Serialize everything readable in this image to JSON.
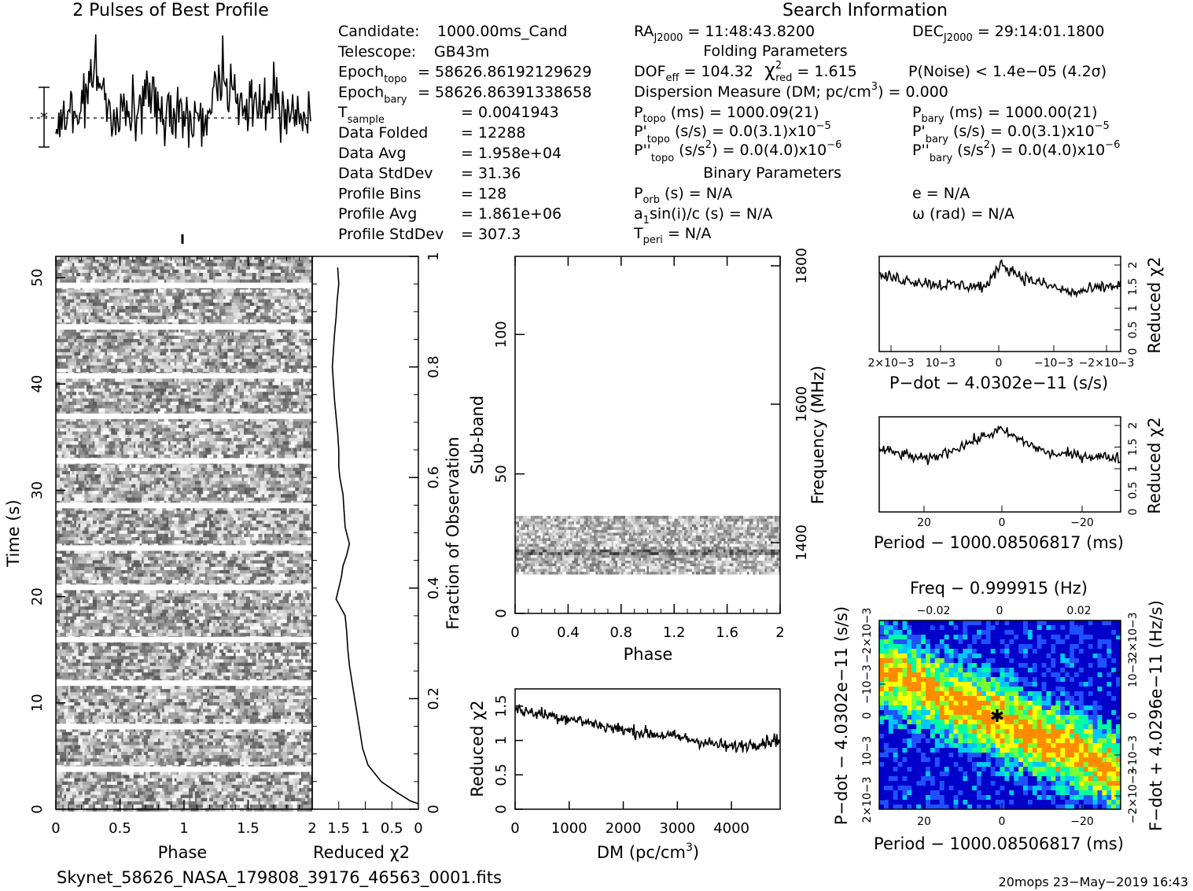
{
  "titles": {
    "profile": "2 Pulses of Best Profile",
    "search": "Search Information",
    "folding": "Folding Parameters",
    "binary": "Binary Parameters"
  },
  "info_left": [
    {
      "label": "Candidate:",
      "value": "1000.00ms_Cand"
    },
    {
      "label": "Telescope:",
      "value": "GB43m"
    },
    {
      "label": "Epoch",
      "sub": "topo",
      "value": "= 58626.86192129629"
    },
    {
      "label": "Epoch",
      "sub": "bary",
      "value": "= 58626.86391338658"
    },
    {
      "label": "T",
      "sub": "sample",
      "value": "=   0.0041943"
    },
    {
      "label": "Data Folded",
      "value": "=   12288"
    },
    {
      "label": "Data Avg",
      "value": "=   1.958e+04"
    },
    {
      "label": "Data StdDev",
      "value": "=   31.36"
    },
    {
      "label": "Profile Bins",
      "value": "=   128"
    },
    {
      "label": "Profile Avg",
      "value": "=   1.861e+06"
    },
    {
      "label": "Profile StdDev",
      "value": "=   307.3"
    }
  ],
  "info_mid": {
    "ra": "RA",
    "ra_sub": "J2000",
    "ra_val": "= 11:48:43.8200",
    "dof": "DOF",
    "dof_sub": "eff",
    "dof_val": "= 104.32",
    "chi": "χ",
    "chi_sup": "2",
    "chi_sub": "red",
    "chi_val": "= 1.615",
    "dm_line": "Dispersion Measure (DM; pc/cm",
    "dm_sup": "3",
    "dm_end": ") = 0.000",
    "ptopo": "P",
    "ptopo_sub": "topo",
    "ptopo_val": "(ms) =  1000.09(21)",
    "pdtopo": "P'",
    "pdtopo_sub": "topo",
    "pdtopo_val": "(s/s) = 0.0(3.1)x10",
    "pdtopo_exp": "−5",
    "pddtopo": "P''",
    "pddtopo_sub": "topo",
    "pddtopo_val": "(s/s",
    "pddtopo_sup": "2",
    "pddtopo_end": ") = 0.0(4.0)x10",
    "pddtopo_exp": "−6",
    "porb": "P",
    "porb_sub": "orb",
    "porb_val": "(s) = N/A",
    "a1": "a",
    "a1_sub": "1",
    "a1_val": "sin(i)/c (s) = N/A",
    "tperi": "T",
    "tperi_sub": "peri",
    "tperi_val": "= N/A"
  },
  "info_right": {
    "dec": "DEC",
    "dec_sub": "J2000",
    "dec_val": "= 29:14:01.1800",
    "pnoise": "P(Noise) < 1.4e−05   (4.2σ)",
    "pbary": "P",
    "pbary_sub": "bary",
    "pbary_val": "(ms) =  1000.00(21)",
    "pdbary": "P'",
    "pdbary_sub": "bary",
    "pdbary_val": "(s/s) = 0.0(3.1)x10",
    "pdbary_exp": "−5",
    "pddbary": "P''",
    "pddbary_sub": "bary",
    "pddbary_val": "(s/s",
    "pddbary_sup": "2",
    "pddbary_end": ") = 0.0(4.0)x10",
    "pddbary_exp": "−6",
    "ecc": "e = N/A",
    "omega": "ω (rad) = N/A"
  },
  "footer": {
    "filename": "Skynet_58626_NASA_179808_39176_46563_0001.fits",
    "stamp": "20mops 23−May−2019 16:43"
  },
  "chart_data": [
    {
      "type": "line",
      "id": "best-profile",
      "title": "2 Pulses of Best Profile",
      "xlim": [
        0,
        2
      ],
      "n_bins": 256,
      "note_markers": [
        "*",
        "error bar"
      ]
    },
    {
      "type": "heatmap",
      "id": "time-phase",
      "xlabel": "Phase",
      "ylabel": "Time (s)",
      "xlim": [
        0,
        2
      ],
      "ylim": [
        0,
        52
      ],
      "xticks": [
        "0",
        "0.5",
        "1",
        "1.5"
      ],
      "yticks": [
        "0",
        "10",
        "20",
        "30",
        "40",
        "50"
      ],
      "gap_rows_s": [
        3.8,
        7.8,
        11.9,
        16.0,
        20.9,
        24.6,
        28.6,
        32.8,
        37.0,
        40.8,
        45.4,
        49.3
      ]
    },
    {
      "type": "line",
      "id": "time-chi2",
      "xlabel": "Reduced χ2",
      "ylabel": "Fraction of Observation",
      "xticks": [
        "2",
        "1.5",
        "1",
        "0.5",
        "0"
      ],
      "xlim": [
        2,
        0
      ],
      "ylim": [
        0,
        1
      ],
      "yticks": [
        "0",
        "0.2",
        "0.4",
        "0.6",
        "0.8",
        "1"
      ],
      "x": [
        1.52,
        1.5,
        1.53,
        1.55,
        1.58,
        1.6,
        1.62,
        1.6,
        1.58,
        1.55,
        1.52,
        1.5,
        1.5,
        1.48,
        1.42,
        1.4,
        1.38,
        1.3,
        1.35,
        1.42,
        1.45,
        1.5,
        1.55,
        1.38,
        1.35,
        1.33,
        1.3,
        1.25,
        1.2,
        1.15,
        1.1,
        1.05,
        0.95,
        0.7,
        0.4,
        0.15
      ],
      "y": [
        0.98,
        0.95,
        0.92,
        0.89,
        0.86,
        0.83,
        0.8,
        0.77,
        0.74,
        0.71,
        0.68,
        0.65,
        0.62,
        0.6,
        0.57,
        0.54,
        0.51,
        0.48,
        0.46,
        0.44,
        0.42,
        0.4,
        0.38,
        0.35,
        0.32,
        0.29,
        0.26,
        0.23,
        0.2,
        0.17,
        0.14,
        0.11,
        0.08,
        0.05,
        0.03,
        0.015
      ]
    },
    {
      "type": "heatmap",
      "id": "subband-phase",
      "xlabel": "Phase",
      "ylabel": "Sub-band",
      "y2label": "Frequency (MHz)",
      "xticks": [
        "0",
        "0.4",
        "0.8",
        "1.2",
        "1.6",
        "2"
      ],
      "yticks": [
        "0",
        "50",
        "100"
      ],
      "y2ticks": [
        "1400",
        "1600",
        "1800"
      ],
      "xlim": [
        0,
        2
      ],
      "ylim": [
        0,
        128
      ],
      "data_band_subbands": [
        14,
        35
      ]
    },
    {
      "type": "line",
      "id": "dm-chi2",
      "xlabel": "DM (pc/cm3)",
      "ylabel": "Reduced χ2",
      "xlim": [
        0,
        4900
      ],
      "ylim": [
        0,
        1.75
      ],
      "xticks": [
        "0",
        "1000",
        "2000",
        "3000",
        "4000"
      ],
      "yticks": [
        "0",
        "0.5",
        "1",
        "1.5"
      ],
      "trend": {
        "x": [
          0,
          1000,
          2000,
          3000,
          4000,
          4900
        ],
        "y": [
          1.45,
          1.32,
          1.15,
          1.05,
          0.9,
          1.02
        ]
      }
    },
    {
      "type": "line",
      "id": "pdot-chi2",
      "xlabel": "P−dot − 4.0302e−11 (s/s)",
      "ylabel": "Reduced χ2",
      "xticks": [
        "2×10−3",
        "10−3",
        "0",
        "−10−3",
        "−2×10−3"
      ],
      "yticks": [
        "0",
        "0.5",
        "1",
        "1.5",
        "2"
      ],
      "ylim": [
        0,
        2.2
      ],
      "trend": {
        "x": [
          0,
          0.25,
          0.45,
          0.5,
          0.6,
          0.8,
          1.0
        ],
        "y": [
          1.75,
          1.55,
          1.5,
          2.05,
          1.7,
          1.35,
          1.55
        ]
      }
    },
    {
      "type": "line",
      "id": "period-chi2",
      "xlabel": "Period − 1000.08506817 (ms)",
      "ylabel": "Reduced χ2",
      "xticks": [
        "20",
        "0",
        "−20"
      ],
      "yticks": [
        "0",
        "0.5",
        "1",
        "1.5",
        "2"
      ],
      "ylim": [
        0,
        2.2
      ],
      "trend": {
        "x": [
          0,
          0.2,
          0.5,
          0.7,
          1.0
        ],
        "y": [
          1.45,
          1.2,
          1.9,
          1.35,
          1.25
        ]
      }
    },
    {
      "type": "heatmap",
      "id": "period-pdot",
      "title": "Freq − 0.999915 (Hz)",
      "xlabel": "Period − 1000.08506817 (ms)",
      "ylabel": "P−dot − 4.0302e−11 (s/s)",
      "y2label": "F−dot + 4.0296e−11 (Hz/s)",
      "xticks": [
        "20",
        "0",
        "−20"
      ],
      "x2ticks": [
        "−0.02",
        "0",
        "0.02"
      ],
      "yticks": [
        "2×10−3",
        "10−3",
        "0",
        "−10−3",
        "−2×10−3"
      ],
      "y2ticks": [
        "−2×10−3",
        "−10−3",
        "0",
        "10−3",
        "2×10−3"
      ],
      "best_point": [
        0,
        0
      ],
      "colors": [
        "#0000c8",
        "#2050ff",
        "#00c8ff",
        "#00ffa0",
        "#7cff32",
        "#ffff00",
        "#ff8c00"
      ]
    }
  ]
}
